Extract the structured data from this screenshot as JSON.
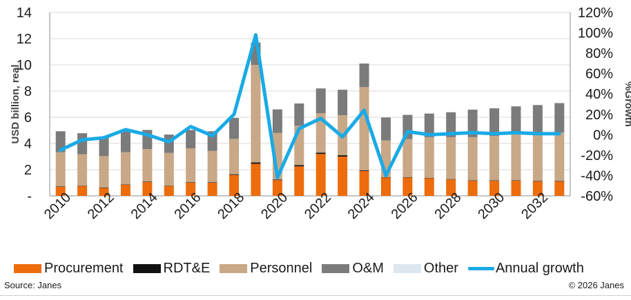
{
  "chart_data": {
    "type": "bar",
    "stacked": true,
    "categories": [
      "2010",
      "2011",
      "2012",
      "2013",
      "2014",
      "2015",
      "2016",
      "2017",
      "2018",
      "2019",
      "2020",
      "2021",
      "2022",
      "2023",
      "2024",
      "2025",
      "2026",
      "2027",
      "2028",
      "2029",
      "2030",
      "2031",
      "2032",
      "2033"
    ],
    "x_tick_labels": [
      "2010",
      "2012",
      "2014",
      "2016",
      "2018",
      "2020",
      "2022",
      "2024",
      "2026",
      "2028",
      "2030",
      "2032"
    ],
    "series": [
      {
        "name": "Procurement",
        "values": [
          0.7,
          0.75,
          0.6,
          0.85,
          1.05,
          0.75,
          1.0,
          1.0,
          1.6,
          2.45,
          1.2,
          2.25,
          3.2,
          3.0,
          1.9,
          1.4,
          1.4,
          1.35,
          1.25,
          1.15,
          1.15,
          1.15,
          1.1,
          1.1
        ]
      },
      {
        "name": "RDT&E",
        "values": [
          0.03,
          0.03,
          0.03,
          0.03,
          0.03,
          0.03,
          0.03,
          0.03,
          0.05,
          0.1,
          0.05,
          0.1,
          0.1,
          0.1,
          0.05,
          0.03,
          0.03,
          0.03,
          0.03,
          0.03,
          0.03,
          0.03,
          0.03,
          0.03
        ]
      },
      {
        "name": "Personnel",
        "values": [
          2.6,
          2.4,
          2.4,
          2.45,
          2.5,
          2.5,
          2.6,
          2.4,
          2.7,
          7.45,
          3.55,
          3.0,
          3.0,
          3.05,
          6.35,
          2.8,
          2.9,
          3.1,
          3.2,
          3.3,
          3.4,
          3.5,
          3.6,
          3.7
        ]
      },
      {
        "name": "O&M",
        "values": [
          1.6,
          1.6,
          1.4,
          1.6,
          1.45,
          1.4,
          1.4,
          1.5,
          1.6,
          1.7,
          1.8,
          1.7,
          1.9,
          1.95,
          1.8,
          1.75,
          1.85,
          1.8,
          1.9,
          2.1,
          2.1,
          2.15,
          2.2,
          2.25
        ]
      },
      {
        "name": "Other",
        "values": [
          0,
          0,
          0,
          0,
          0,
          0,
          0,
          0,
          0,
          0,
          0,
          0,
          0,
          0,
          0,
          0,
          0,
          0,
          0,
          0,
          0,
          0,
          0,
          0
        ]
      }
    ],
    "line_series": {
      "name": "Annual growth",
      "axis": "right",
      "values": [
        -15,
        -5,
        -3,
        5,
        0,
        -7,
        8,
        -1,
        20,
        98,
        -42,
        6,
        16,
        -2,
        24,
        -40,
        3,
        0,
        1,
        2,
        1,
        2,
        1,
        1
      ]
    },
    "ylabel": "USD billion, real",
    "y2label": "%Growth",
    "ylim": [
      0,
      14
    ],
    "y2lim": [
      -60,
      120
    ],
    "y_tick_labels": [
      "-",
      "2",
      "4",
      "6",
      "8",
      "10",
      "12",
      "14"
    ],
    "y2_tick_labels": [
      "-60%",
      "-40%",
      "-20%",
      "0%",
      "20%",
      "40%",
      "60%",
      "80%",
      "100%",
      "120%"
    ],
    "grid": true,
    "legend_position": "bottom"
  },
  "legend": {
    "items": [
      {
        "label": "Procurement",
        "color": "#ed6c0c",
        "kind": "bar"
      },
      {
        "label": "RDT&E",
        "color": "#111111",
        "kind": "bar"
      },
      {
        "label": "Personnel",
        "color": "#c8a887",
        "kind": "bar"
      },
      {
        "label": "O&M",
        "color": "#7b7b7b",
        "kind": "bar"
      },
      {
        "label": "Other",
        "color": "#dce6ee",
        "kind": "bar"
      },
      {
        "label": "Annual growth",
        "color": "#1aaae6",
        "kind": "line"
      }
    ]
  },
  "colors": {
    "Procurement": "#ed6c0c",
    "RDT&E": "#111111",
    "Personnel": "#c8a887",
    "O&M": "#7b7b7b",
    "Other": "#dce6ee",
    "Annual growth": "#1aaae6",
    "grid": "#d9d9d9"
  },
  "footer": {
    "source": "Source: Janes",
    "copyright": "© 2026 Janes"
  }
}
